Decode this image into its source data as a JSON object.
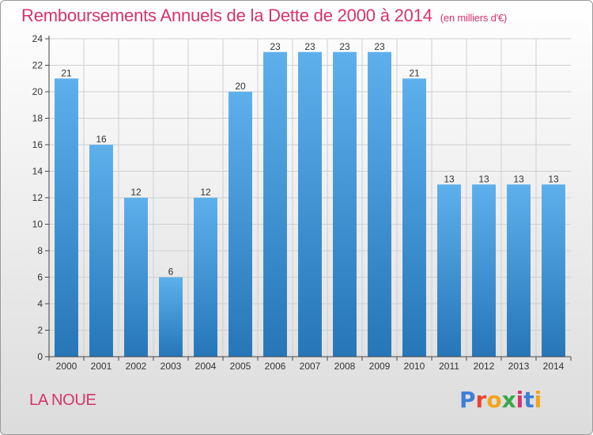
{
  "header": {
    "title": "Remboursements Annuels de la Dette de 2000 à 2014",
    "unit": "(en milliers d'€)"
  },
  "footer": {
    "place": "LA NOUE",
    "logo_text": "Proxiti",
    "logo_colors": [
      "#3e7fd6",
      "#e8462f",
      "#f2a51a",
      "#3aa84a",
      "#d6336c",
      "#3e7fd6",
      "#f2a51a"
    ]
  },
  "chart_data": {
    "type": "bar",
    "title": "Remboursements Annuels de la Dette de 2000 à 2014",
    "subtitle": "(en milliers d'€)",
    "xlabel": "",
    "ylabel": "",
    "categories": [
      "2000",
      "2001",
      "2002",
      "2003",
      "2004",
      "2005",
      "2006",
      "2007",
      "2008",
      "2009",
      "2010",
      "2011",
      "2012",
      "2013",
      "2014"
    ],
    "values": [
      21,
      16,
      12,
      6,
      12,
      20,
      23,
      23,
      23,
      23,
      21,
      13,
      13,
      13,
      13
    ],
    "data_labels": [
      "21",
      "16",
      "12",
      "6",
      "12",
      "20",
      "23",
      "23",
      "23",
      "23",
      "21",
      "13",
      "13",
      "13",
      "13"
    ],
    "ylim": [
      0,
      24
    ],
    "yticks": [
      "0",
      "2",
      "4",
      "6",
      "8",
      "10",
      "12",
      "14",
      "16",
      "18",
      "20",
      "22",
      "24"
    ],
    "grid": true,
    "colors": {
      "bar_light": "#5db0ec",
      "bar_dark": "#2676b8",
      "grid": "#cfcfcf",
      "title": "#d6336c"
    }
  }
}
